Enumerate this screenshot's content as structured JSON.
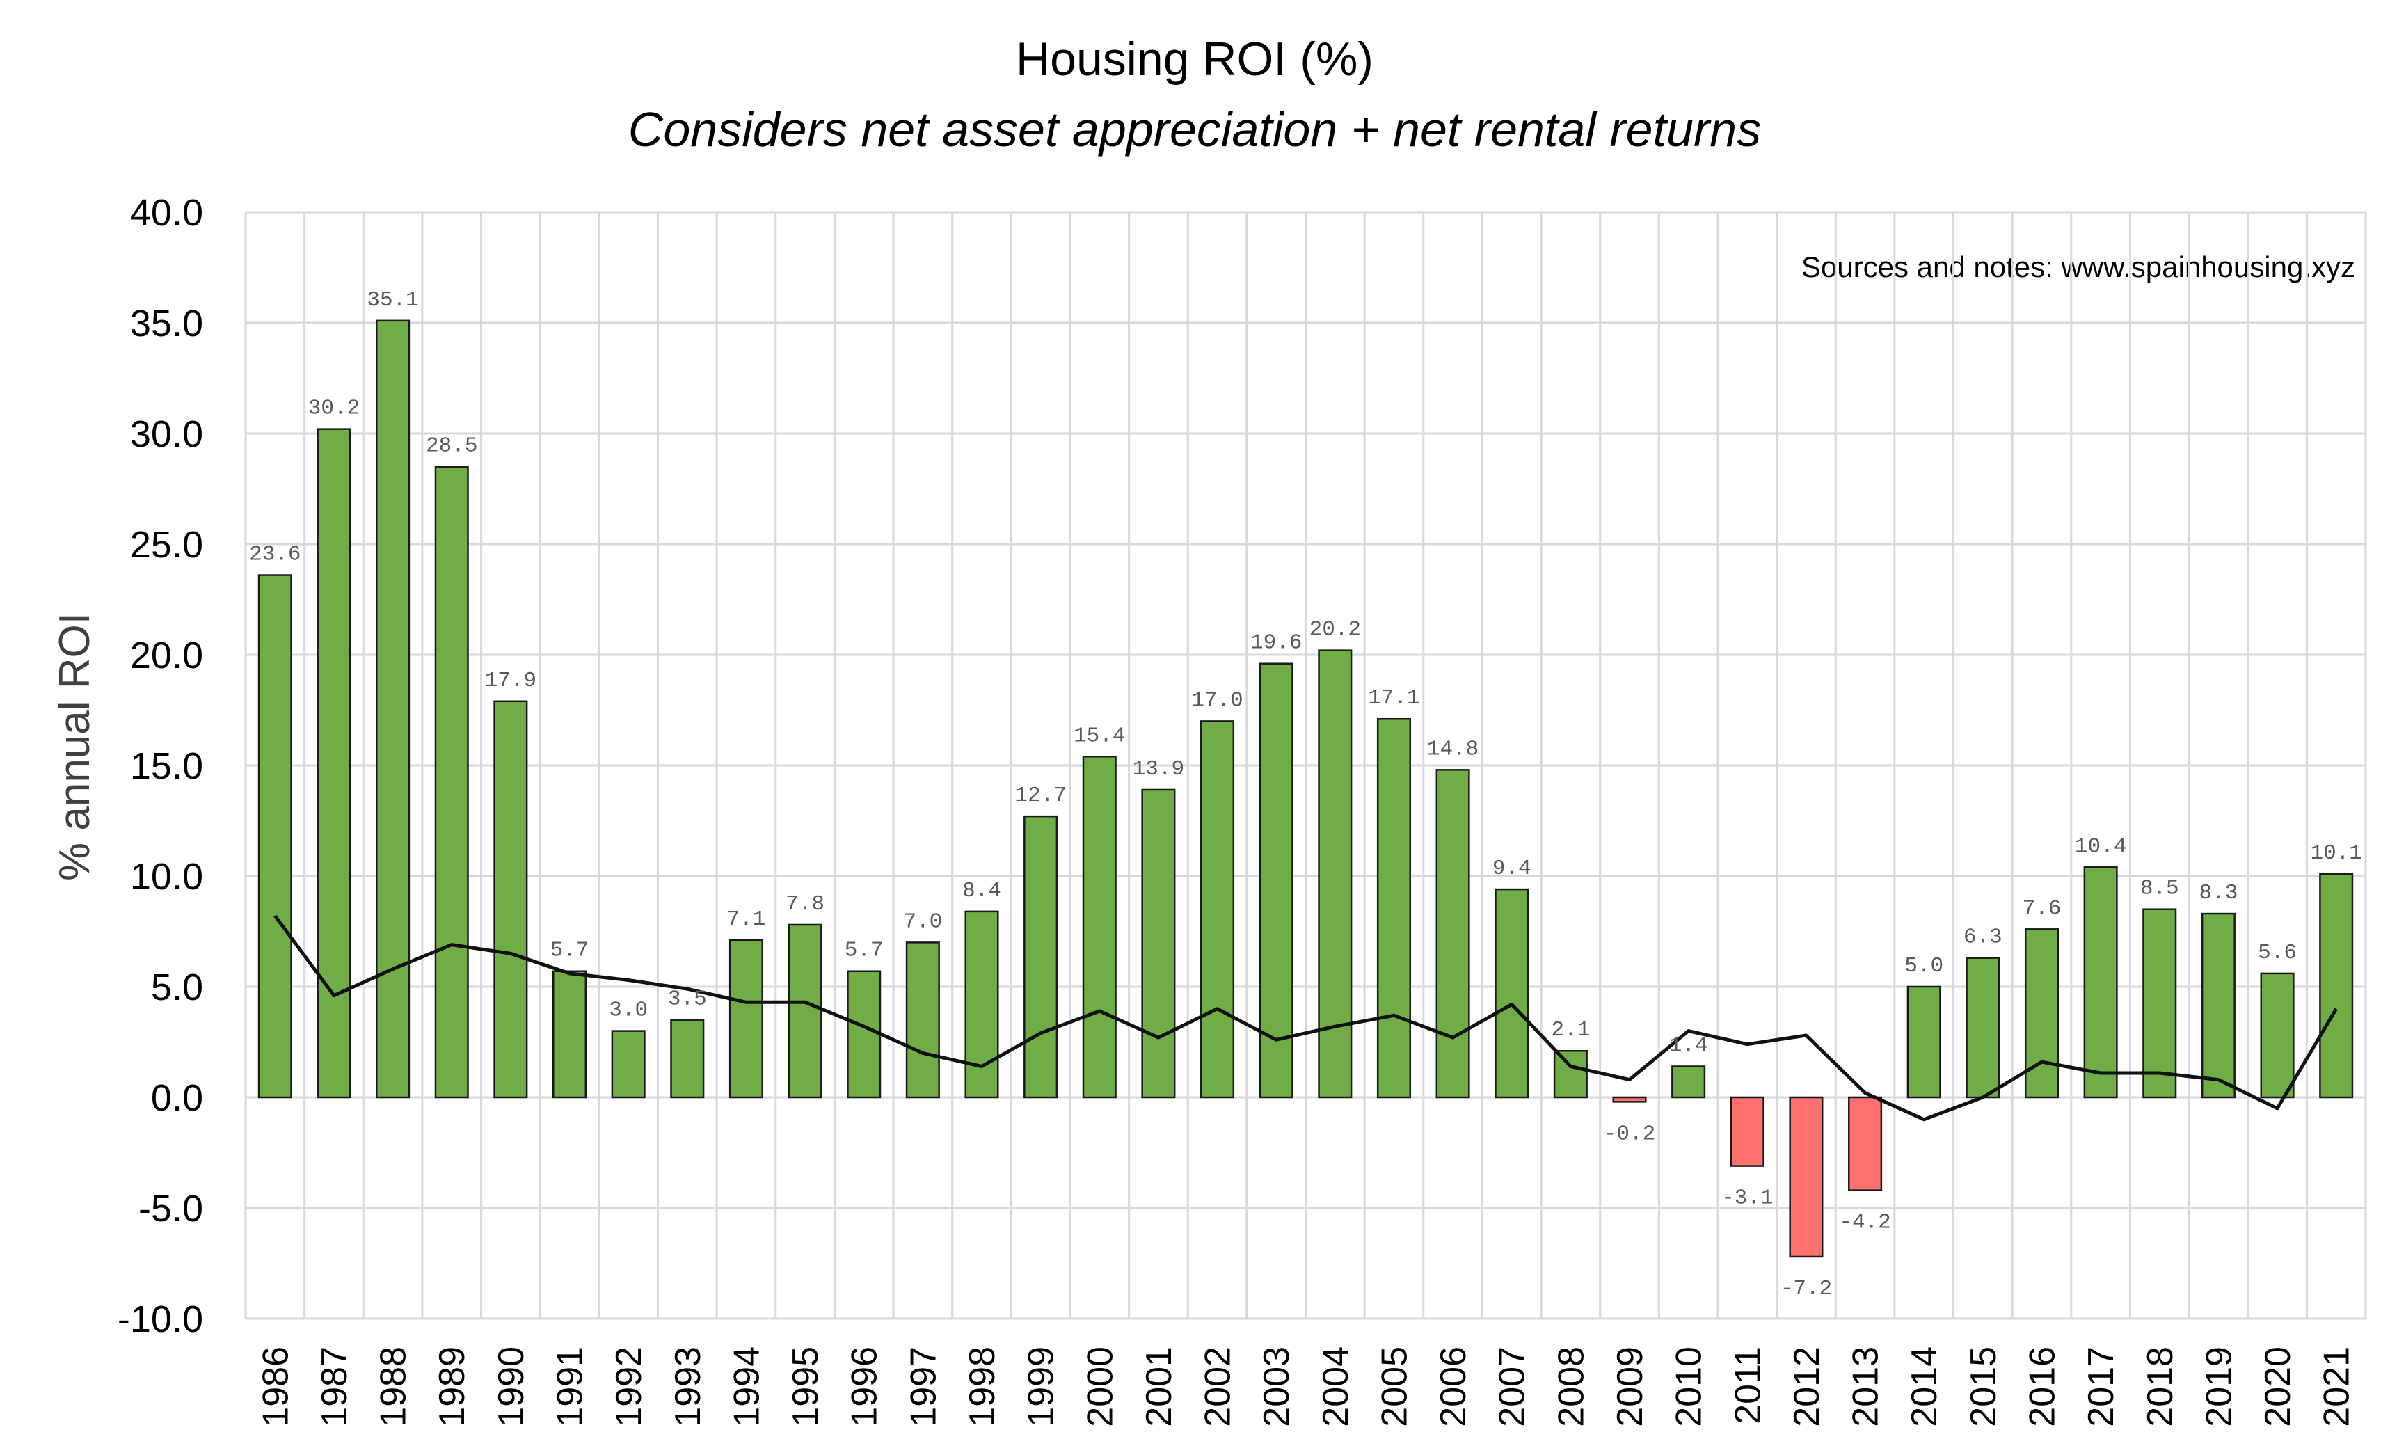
{
  "chart_data": {
    "type": "bar",
    "title": "Housing ROI (%)",
    "subtitle": "Considers net asset appreciation + net rental returns",
    "ylabel": "% annual ROI",
    "xlabel": "",
    "note": "Sources and notes: www.spainhousing.xyz",
    "ylim": [
      -10,
      40
    ],
    "yticks": [
      "40.0",
      "35.0",
      "30.0",
      "25.0",
      "20.0",
      "15.0",
      "10.0",
      "5.0",
      "0.0",
      "-5.0",
      "-10.0"
    ],
    "ytick_values": [
      40,
      35,
      30,
      25,
      20,
      15,
      10,
      5,
      0,
      -5,
      -10
    ],
    "grid": true,
    "categories": [
      "1986",
      "1987",
      "1988",
      "1989",
      "1990",
      "1991",
      "1992",
      "1993",
      "1994",
      "1995",
      "1996",
      "1997",
      "1998",
      "1999",
      "2000",
      "2001",
      "2002",
      "2003",
      "2004",
      "2005",
      "2006",
      "2007",
      "2008",
      "2009",
      "2010",
      "2011",
      "2012",
      "2013",
      "2014",
      "2015",
      "2016",
      "2017",
      "2018",
      "2019",
      "2020",
      "2021"
    ],
    "series": [
      {
        "type": "bar",
        "values": [
          23.6,
          30.2,
          35.1,
          28.5,
          17.9,
          5.7,
          3.0,
          3.5,
          7.1,
          7.8,
          5.7,
          7.0,
          8.4,
          12.7,
          15.4,
          13.9,
          17.0,
          19.6,
          20.2,
          17.1,
          14.8,
          9.4,
          2.1,
          -0.2,
          1.4,
          -3.1,
          -7.2,
          -4.2,
          5.0,
          6.3,
          7.6,
          10.4,
          8.5,
          8.3,
          5.6,
          10.1
        ],
        "data_labels": [
          "23.6",
          "30.2",
          "35.1",
          "28.5",
          "17.9",
          "5.7",
          "3.0",
          "3.5",
          "7.1",
          "7.8",
          "5.7",
          "7.0",
          "8.4",
          "12.7",
          "15.4",
          "13.9",
          "17.0",
          "19.6",
          "20.2",
          "17.1",
          "14.8",
          "9.4",
          "2.1",
          "-0.2",
          "1.4",
          "-3.1",
          "-7.2",
          "-4.2",
          "5.0",
          "6.3",
          "7.6",
          "10.4",
          "8.5",
          "8.3",
          "5.6",
          "10.1"
        ]
      },
      {
        "type": "line",
        "values": [
          8.2,
          4.6,
          5.8,
          6.9,
          6.5,
          5.6,
          5.3,
          4.9,
          4.3,
          4.3,
          3.2,
          2.0,
          1.4,
          2.9,
          3.9,
          2.7,
          4.0,
          2.6,
          3.2,
          3.7,
          2.7,
          4.2,
          1.4,
          0.8,
          3.0,
          2.4,
          2.8,
          0.2,
          -1.0,
          0.0,
          1.6,
          1.1,
          1.1,
          0.8,
          -0.5,
          4.0
        ]
      }
    ],
    "colors": {
      "positive": "#70ad47",
      "negative": "#ff7070",
      "bar_edge": "#1a1a1a",
      "line": "#111111",
      "grid": "#d9d9d9"
    }
  }
}
